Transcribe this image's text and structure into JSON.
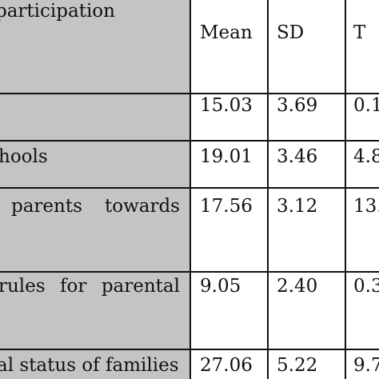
{
  "table": {
    "header": {
      "label": "participation",
      "cols": [
        "Mean",
        "SD",
        "T"
      ]
    },
    "rows": [
      {
        "label": "",
        "mean": "15.03",
        "sd": "3.69",
        "t": "0.1"
      },
      {
        "label": "hools",
        "mean": "19.01",
        "sd": "3.46",
        "t": "4.8"
      },
      {
        "label": "parents   towards",
        "mean": "17.56",
        "sd": "3.12",
        "t": "13."
      },
      {
        "label": "rules  for  parental",
        "mean": "9.05",
        "sd": "2.40",
        "t": "0.3"
      },
      {
        "label": "al status of families",
        "mean": "27.06",
        "sd": "5.22",
        "t": "9.7"
      }
    ]
  },
  "colors": {
    "label_band": "#c4c4c4",
    "rule": "#111111"
  }
}
